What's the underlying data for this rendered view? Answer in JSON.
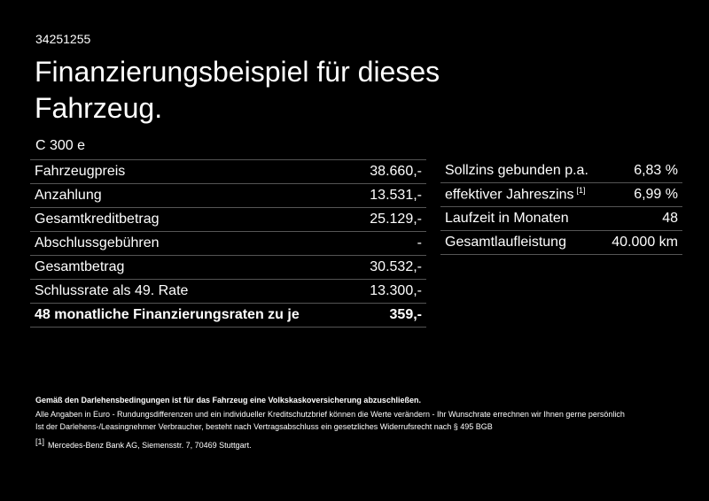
{
  "header": {
    "id": "34251255",
    "title_lines": [
      "Finanzierungsbeispiel für dieses",
      "Fahrzeug."
    ],
    "model": "C 300 e"
  },
  "left_table": {
    "rows": [
      [
        "Fahrzeugpreis",
        "38.660,-"
      ],
      [
        "Anzahlung",
        "13.531,-"
      ],
      [
        "Gesamtkreditbetrag",
        "25.129,-"
      ],
      [
        "Abschlussgebühren",
        "-"
      ],
      [
        "Gesamtbetrag",
        "30.532,-"
      ],
      [
        "Schlussrate als 49. Rate",
        "13.300,-"
      ],
      [
        "48 monatliche Finanzierungsraten zu je",
        "359,-"
      ]
    ]
  },
  "right_table": {
    "rows": [
      {
        "label": "Sollzins gebunden p.a.",
        "value": "6,83 %"
      },
      {
        "label": "effektiver Jahreszins",
        "footnote": "[1]",
        "value": "6,99 %"
      },
      {
        "label": "Laufzeit in Monaten",
        "value": "48"
      },
      {
        "label": "Gesamtlaufleistung",
        "value": "40.000 km"
      }
    ]
  },
  "footer": {
    "notice": "Gemäß den Darlehensbedingungen ist für das Fahrzeug eine Volkskaskoversicherung abzuschließen.",
    "lines": [
      "Alle Angaben in Euro - Rundungsdifferenzen und ein individueller Kreditschutzbrief können die Werte verändern - Ihr Wunschrate errechnen wir Ihnen gerne persönlich",
      "Ist der Darlehens-/Leasingnehmer Verbraucher, besteht nach Vertragsabschluss ein gesetzliches Widerrufsrecht nach § 495 BGB"
    ],
    "footnote_marker": "[1]",
    "footnote_text": "Mercedes-Benz Bank AG, Siemensstr. 7, 70469 Stuttgart."
  }
}
